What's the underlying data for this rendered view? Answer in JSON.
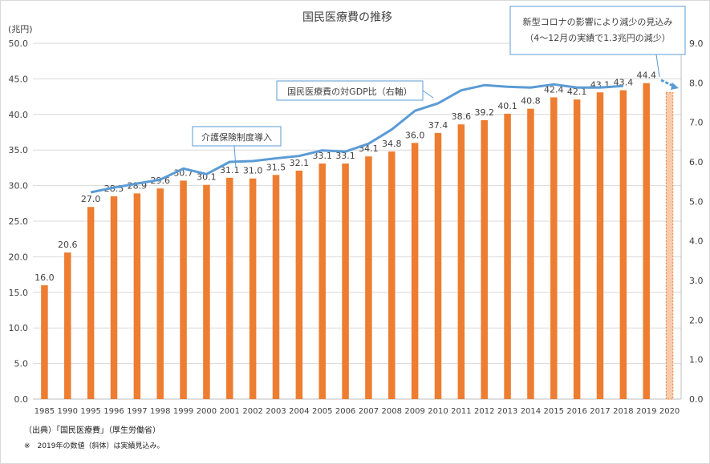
{
  "chart_data": {
    "type": "bar",
    "title": "国民医療費の推移",
    "y_unit_label": "(兆円)",
    "ylim": [
      0,
      50
    ],
    "y_ticks": [
      "0.0",
      "5.0",
      "10.0",
      "15.0",
      "20.0",
      "25.0",
      "30.0",
      "35.0",
      "40.0",
      "45.0",
      "50.0"
    ],
    "y2lim": [
      0,
      9
    ],
    "y2_ticks": [
      "0.0",
      "1.0",
      "2.0",
      "3.0",
      "4.0",
      "5.0",
      "6.0",
      "7.0",
      "8.0",
      "9.0"
    ],
    "categories": [
      "1985",
      "1990",
      "1995",
      "1996",
      "1997",
      "1998",
      "1999",
      "2000",
      "2001",
      "2002",
      "2003",
      "2004",
      "2005",
      "2006",
      "2007",
      "2008",
      "2009",
      "2010",
      "2011",
      "2012",
      "2013",
      "2014",
      "2015",
      "2016",
      "2017",
      "2018",
      "2019",
      "2020"
    ],
    "series": [
      {
        "values": [
          16.0,
          20.6,
          27.0,
          28.5,
          28.9,
          29.6,
          30.7,
          30.1,
          31.1,
          31.0,
          31.5,
          32.1,
          33.1,
          33.1,
          34.1,
          34.8,
          36.0,
          37.4,
          38.6,
          39.2,
          40.1,
          40.8,
          42.4,
          42.1,
          43.1,
          43.4,
          44.4,
          43.1
        ],
        "labels": [
          "16.0",
          "20.6",
          "27.0",
          "28.5",
          "28.9",
          "29.6",
          "30.7",
          "30.1",
          "31.1",
          "31.0",
          "31.5",
          "32.1",
          "33.1",
          "33.1",
          "34.1",
          "34.8",
          "36.0",
          "37.4",
          "38.6",
          "39.2",
          "40.1",
          "40.8",
          "42.4",
          "42.1",
          "43.1",
          "43.4",
          "44.4",
          ""
        ],
        "color": "#ED7D31",
        "projected_color": "#F8CBAD"
      },
      {
        "axis": "right",
        "type": "line",
        "color": "#5B9BD5",
        "x": [
          "1995",
          "1996",
          "1997",
          "1998",
          "1999",
          "2000",
          "2001",
          "2002",
          "2003",
          "2004",
          "2005",
          "2006",
          "2007",
          "2008",
          "2009",
          "2010",
          "2011",
          "2012",
          "2013",
          "2014",
          "2015",
          "2016",
          "2017",
          "2018"
        ],
        "values": [
          5.23,
          5.35,
          5.45,
          5.55,
          5.83,
          5.69,
          6.0,
          6.02,
          6.09,
          6.15,
          6.29,
          6.26,
          6.46,
          6.82,
          7.29,
          7.48,
          7.81,
          7.94,
          7.9,
          7.88,
          7.96,
          7.88,
          7.88,
          7.92
        ]
      }
    ],
    "annotations": {
      "gdp_label": "国民医療費の対GDP比（右軸）",
      "kaigo": "介護保険制度導入",
      "corona_line1": "新型コロナの影響により減少の見込み",
      "corona_line2": "（4～12月の実績で1.3兆円の減少）"
    },
    "source_line": "（出典）「国民医療費」（厚生労働省）",
    "note_line": "※　2019年の数値（斜体）は実績見込み。",
    "colors": {
      "bar": "#ED7D31",
      "line": "#5B9BD5",
      "grid": "#D9D9D9",
      "axis": "#BFBFBF"
    }
  }
}
